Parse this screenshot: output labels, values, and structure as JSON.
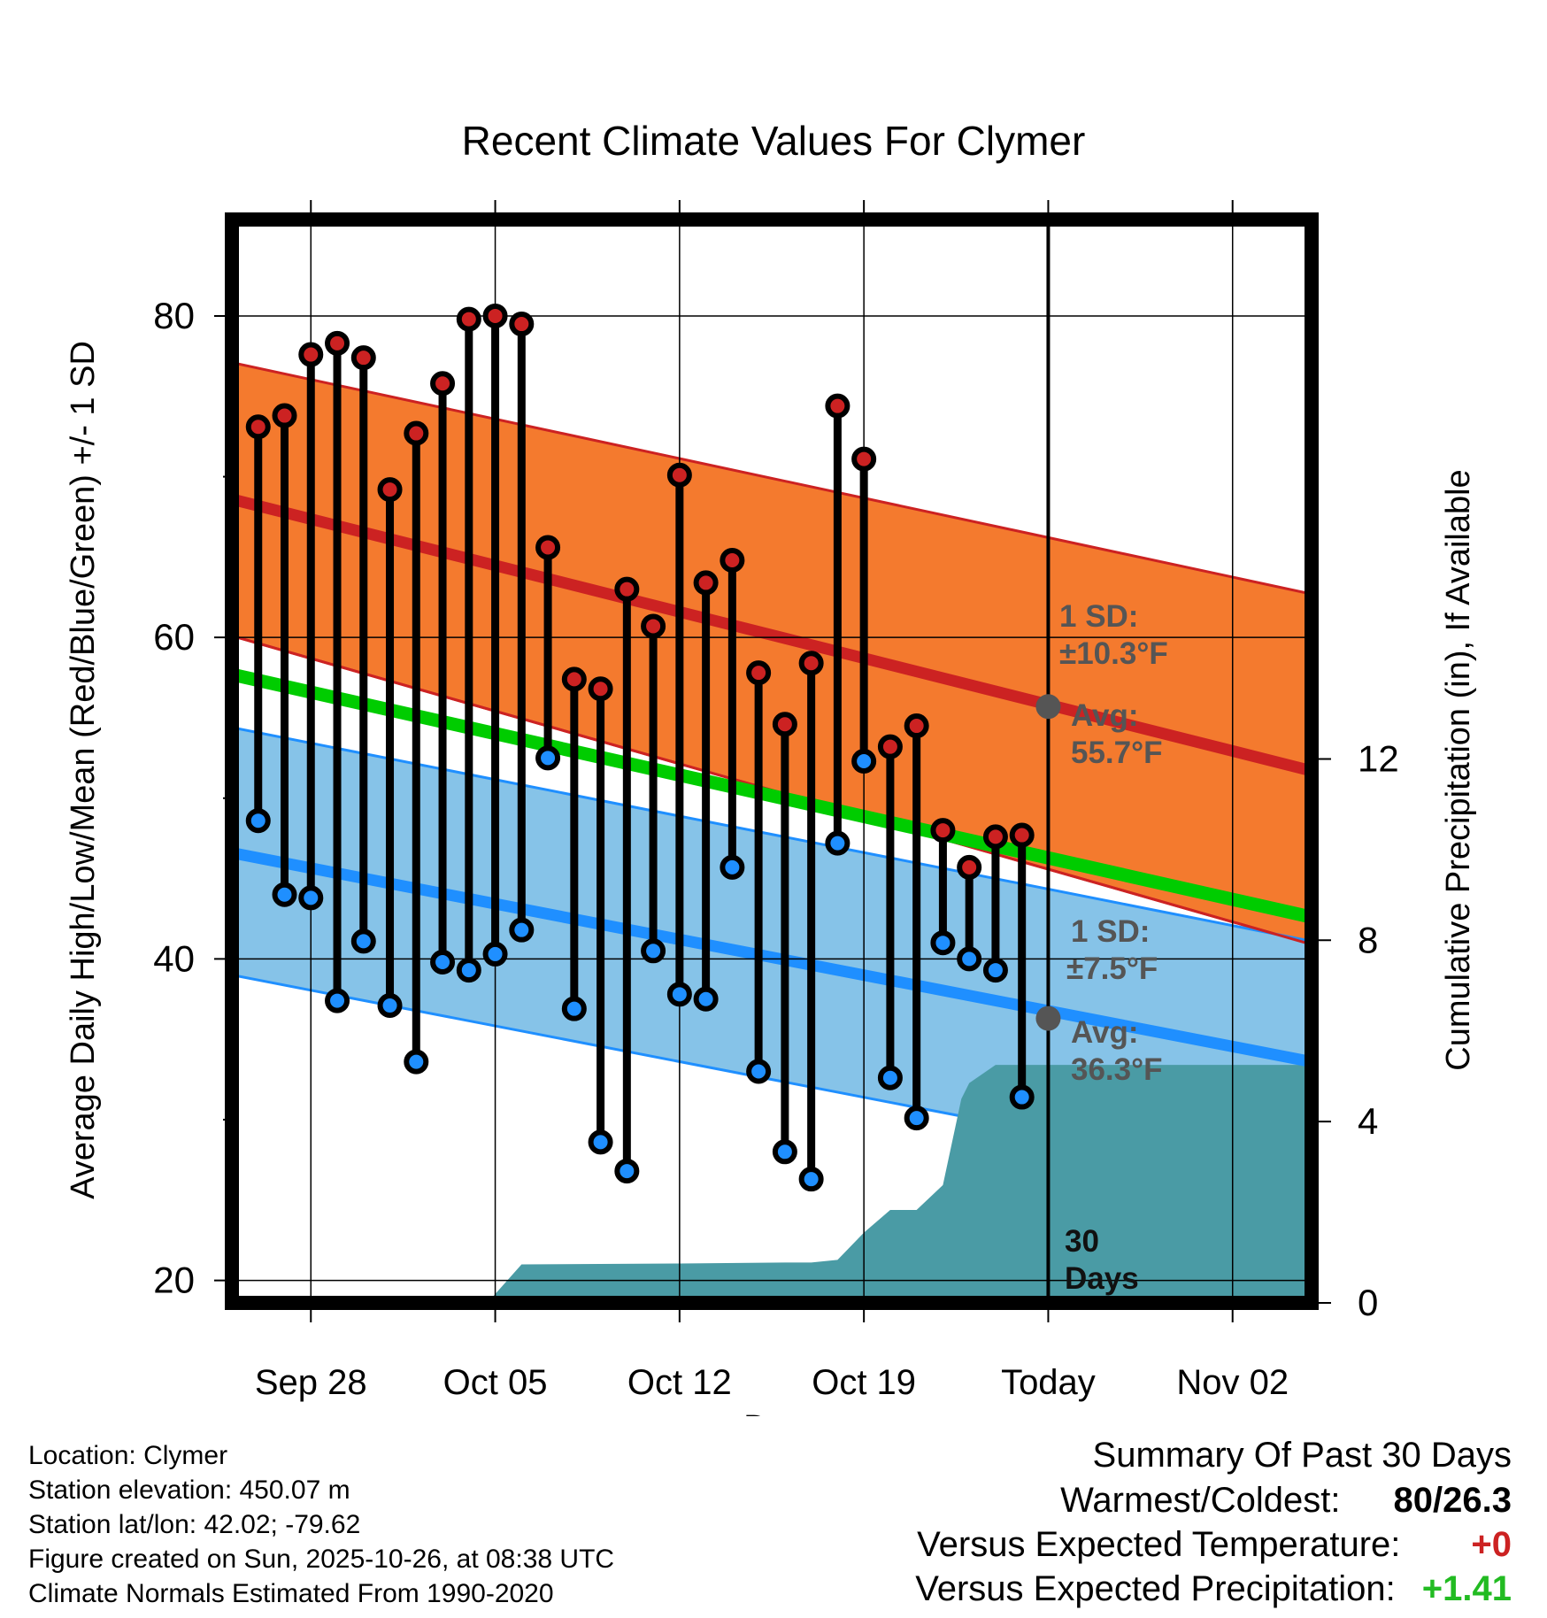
{
  "chart_data": {
    "type": "line",
    "title": "Recent Climate Values For Clymer",
    "xlabel": "Day",
    "ylabel_left": "Average Daily High/Low/Mean (Red/Blue/Green) +/- 1 SD",
    "ylabel_right": "Cumulative Precipitation (in), If Available",
    "ylim": [
      18.6,
      86
    ],
    "ylim_right": [
      0,
      23.9
    ],
    "xlim": [
      -3.0,
      38.0
    ],
    "y_ticks": [
      20,
      40,
      60,
      80
    ],
    "y_ticks_right": [
      0,
      4,
      8,
      12
    ],
    "x_ticks": [
      {
        "day": 0,
        "label": "Sep 28"
      },
      {
        "day": 7,
        "label": "Oct 05"
      },
      {
        "day": 14,
        "label": "Oct 12"
      },
      {
        "day": 21,
        "label": "Oct 19"
      },
      {
        "day": 28,
        "label": "Today"
      },
      {
        "day": 35,
        "label": "Nov 02"
      }
    ],
    "today_day": 28,
    "normals": {
      "high_avg": {
        "start": 68.6,
        "end": 51.7
      },
      "high_sd_upper": {
        "start": 77.1,
        "end": 62.7
      },
      "high_sd_lower": {
        "start": 60.1,
        "end": 40.9
      },
      "low_avg": {
        "start": 46.6,
        "end": 33.6
      },
      "low_sd_upper": {
        "start": 54.4,
        "end": 41.1
      },
      "low_sd_lower": {
        "start": 39.0,
        "end": 26.0
      },
      "mean_avg": {
        "start": 57.7,
        "end": 42.6
      }
    },
    "series": [
      {
        "name": "Daily High",
        "color": "#cc2222",
        "x": [
          -2,
          -1,
          0,
          1,
          2,
          3,
          4,
          5,
          6,
          7,
          8,
          9,
          10,
          11,
          12,
          13,
          14,
          15,
          16,
          17,
          18,
          19,
          20,
          21,
          22,
          23,
          24,
          25,
          26,
          27
        ],
        "values": [
          73.1,
          73.8,
          77.6,
          78.3,
          77.4,
          69.2,
          72.7,
          75.8,
          79.8,
          80.0,
          79.5,
          65.6,
          57.4,
          56.8,
          63.0,
          60.7,
          70.1,
          63.4,
          64.8,
          57.8,
          54.6,
          58.4,
          74.4,
          71.1,
          53.2,
          54.5,
          48.0,
          45.7,
          47.6,
          47.7
        ]
      },
      {
        "name": "Daily Low",
        "color": "#1f8fff",
        "x": [
          -2,
          -1,
          0,
          1,
          2,
          3,
          4,
          5,
          6,
          7,
          8,
          9,
          10,
          11,
          12,
          13,
          14,
          15,
          16,
          17,
          18,
          19,
          20,
          21,
          22,
          23,
          24,
          25,
          26,
          27
        ],
        "values": [
          48.6,
          44.0,
          43.8,
          37.4,
          41.1,
          37.1,
          33.6,
          39.8,
          39.3,
          40.3,
          41.8,
          52.5,
          36.9,
          28.6,
          26.8,
          40.5,
          37.8,
          37.5,
          45.7,
          33.0,
          28.0,
          26.3,
          47.2,
          52.3,
          32.6,
          30.1,
          41.0,
          40.0,
          39.3,
          31.4
        ]
      }
    ],
    "precipitation": {
      "x": [
        6.7,
        8.0,
        14.0,
        18.0,
        19.0,
        20.0,
        21.0,
        22.0,
        23.0,
        24.0,
        24.7,
        25.0,
        26.0,
        27.0,
        28.0,
        38.0
      ],
      "values": [
        0.0,
        0.85,
        0.87,
        0.89,
        0.89,
        0.95,
        1.55,
        2.05,
        2.05,
        2.6,
        4.5,
        4.85,
        5.25,
        5.25,
        5.25,
        5.25
      ],
      "color": "#4a9ba5"
    },
    "annotations": {
      "high_sd_label_1": "1 SD:",
      "high_sd_label_2": "±10.3°F",
      "high_avg_label_1": "Avg:",
      "high_avg_label_2": "55.7°F",
      "low_sd_label_1": "1 SD:",
      "low_sd_label_2": "±7.5°F",
      "low_avg_label_1": "Avg:",
      "low_avg_label_2": "36.3°F",
      "days_label_1": "30",
      "days_label_2": "Days",
      "high_avg_today": 55.7,
      "low_avg_today": 36.3
    }
  },
  "footer": {
    "location": "Location: Clymer",
    "elevation": "Station elevation: 450.07 m",
    "latlon": "Station lat/lon: 42.02; -79.62",
    "created": "Figure created on Sun, 2025-10-26, at 08:38 UTC",
    "normals": "Climate Normals Estimated From 1990-2020"
  },
  "summary": {
    "title": "Summary Of Past 30 Days",
    "warmest_label": "Warmest/Coldest:",
    "warmest_value": "80/26.3",
    "temp_label": "Versus Expected Temperature:",
    "temp_value": "+0",
    "temp_color": "#cc2222",
    "precip_label": "Versus Expected Precipitation:",
    "precip_value": "+1.41",
    "precip_color": "#22bb22"
  }
}
